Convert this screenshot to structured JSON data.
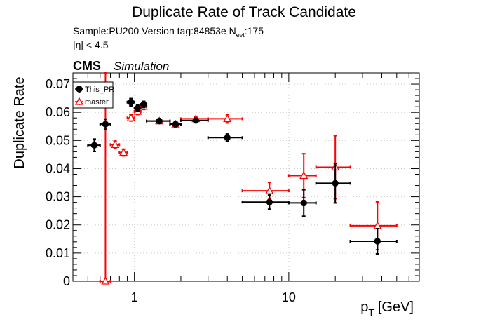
{
  "chart_data": {
    "type": "scatter",
    "title": "Duplicate Rate of Track Candidate",
    "info": {
      "sample_line_prefix": "Sample:PU200   Version tag:84853e  N",
      "sample_line_sub": "evt",
      "sample_line_suffix": ":175",
      "eta_cut": "|η| < 4.5"
    },
    "cms_label": "CMS",
    "simulation_label": "Simulation",
    "xlabel_main": "p",
    "xlabel_sub": "T",
    "xlabel_unit": " [GeV]",
    "ylabel": "Duplicate Rate",
    "x_scale": "log",
    "xlim": [
      0.4,
      70
    ],
    "ylim": [
      0,
      0.074
    ],
    "grid": true,
    "legend_position": "top-left",
    "x_tick_labels": [
      {
        "value": 1,
        "label": "1"
      },
      {
        "value": 10,
        "label": "10"
      }
    ],
    "y_ticks": [
      {
        "value": 0,
        "label": "0"
      },
      {
        "value": 0.01,
        "label": "0.01"
      },
      {
        "value": 0.02,
        "label": "0.02"
      },
      {
        "value": 0.03,
        "label": "0.03"
      },
      {
        "value": 0.04,
        "label": "0.04"
      },
      {
        "value": 0.05,
        "label": "0.05"
      },
      {
        "value": 0.06,
        "label": "0.06"
      },
      {
        "value": 0.07,
        "label": "0.07"
      }
    ],
    "series": [
      {
        "name": "This_PR",
        "color": "#000000",
        "marker": "filled-circle",
        "points": [
          {
            "x": 0.55,
            "xlo": 0.5,
            "xhi": 0.6,
            "y": 0.0483,
            "yerr": 0.0022
          },
          {
            "x": 0.65,
            "xlo": 0.6,
            "xhi": 0.7,
            "y": 0.0558,
            "yerr": 0.0018
          },
          {
            "x": 0.95,
            "xlo": 0.9,
            "xhi": 1.0,
            "y": 0.0636,
            "yerr": 0.0013
          },
          {
            "x": 1.05,
            "xlo": 1.0,
            "xhi": 1.1,
            "y": 0.0615,
            "yerr": 0.0012
          },
          {
            "x": 1.15,
            "xlo": 1.1,
            "xhi": 1.2,
            "y": 0.0628,
            "yerr": 0.0011
          },
          {
            "x": 1.45,
            "xlo": 1.2,
            "xhi": 1.7,
            "y": 0.0569,
            "yerr": 0.0008
          },
          {
            "x": 1.85,
            "xlo": 1.7,
            "xhi": 2.0,
            "y": 0.0558,
            "yerr": 0.0009
          },
          {
            "x": 2.5,
            "xlo": 2.0,
            "xhi": 3.0,
            "y": 0.0571,
            "yerr": 0.0008
          },
          {
            "x": 4.0,
            "xlo": 3.0,
            "xhi": 5.0,
            "y": 0.051,
            "yerr": 0.0013
          },
          {
            "x": 7.5,
            "xlo": 5.0,
            "xhi": 10.0,
            "y": 0.0281,
            "yerr": 0.0025
          },
          {
            "x": 12.5,
            "xlo": 10.0,
            "xhi": 15.0,
            "y": 0.0278,
            "yerr": 0.0047
          },
          {
            "x": 20.0,
            "xlo": 15.0,
            "xhi": 25.0,
            "y": 0.0348,
            "yerr": 0.007
          },
          {
            "x": 37.5,
            "xlo": 25.0,
            "xhi": 50.0,
            "y": 0.0142,
            "yerr": 0.0045
          }
        ]
      },
      {
        "name": "master",
        "color": "#ff0000",
        "marker": "open-triangle",
        "points": [
          {
            "x": 0.65,
            "xlo": 0.6,
            "xhi": 0.7,
            "y": 0.0,
            "yerr_lo": 0.0,
            "yerr_hi": 0.074
          },
          {
            "x": 0.75,
            "xlo": 0.7,
            "xhi": 0.8,
            "y": 0.0485,
            "yerr": 0.0013
          },
          {
            "x": 0.85,
            "xlo": 0.8,
            "xhi": 0.9,
            "y": 0.0457,
            "yerr": 0.0012
          },
          {
            "x": 0.95,
            "xlo": 0.9,
            "xhi": 1.0,
            "y": 0.058,
            "yerr": 0.0011
          },
          {
            "x": 1.05,
            "xlo": 1.0,
            "xhi": 1.1,
            "y": 0.0603,
            "yerr": 0.0011
          },
          {
            "x": 1.15,
            "xlo": 1.1,
            "xhi": 1.2,
            "y": 0.0621,
            "yerr": 0.0011
          },
          {
            "x": 1.45,
            "xlo": 1.2,
            "xhi": 1.7,
            "y": 0.0569,
            "yerr": 0.0008
          },
          {
            "x": 1.85,
            "xlo": 1.7,
            "xhi": 2.0,
            "y": 0.0558,
            "yerr": 0.0009
          },
          {
            "x": 2.5,
            "xlo": 2.0,
            "xhi": 3.0,
            "y": 0.0577,
            "yerr": 0.0008
          },
          {
            "x": 4.0,
            "xlo": 3.0,
            "xhi": 5.0,
            "y": 0.0577,
            "yerr": 0.0015
          },
          {
            "x": 7.5,
            "xlo": 5.0,
            "xhi": 10.0,
            "y": 0.0321,
            "yerr": 0.003
          },
          {
            "x": 12.5,
            "xlo": 10.0,
            "xhi": 15.0,
            "y": 0.0375,
            "yerr": 0.0078
          },
          {
            "x": 20.0,
            "xlo": 15.0,
            "xhi": 25.0,
            "y": 0.0405,
            "yerr": 0.0112
          },
          {
            "x": 37.5,
            "xlo": 25.0,
            "xhi": 50.0,
            "y": 0.0197,
            "yerr": 0.0085
          }
        ]
      }
    ]
  }
}
